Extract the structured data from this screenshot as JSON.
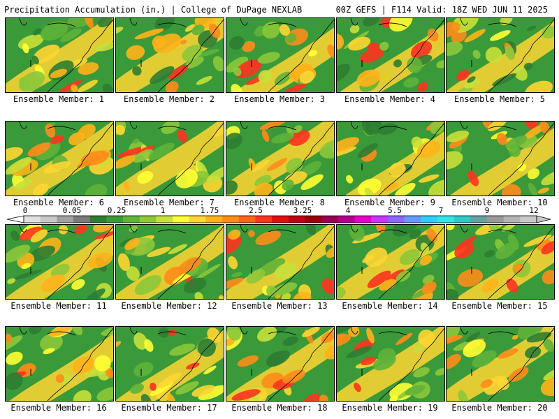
{
  "header": {
    "left_title": "Precipitation Accumulation (in.) | College of DuPage NEXLAB",
    "right_title": "00Z GEFS | F114 Valid: 18Z WED JUN 11 2025"
  },
  "colorbar": {
    "labels": [
      "0",
      "0.05",
      "0.25",
      "1",
      "1.75",
      "2.5",
      "3.25",
      "4",
      "5.5",
      "7",
      "9",
      "12"
    ],
    "colors": [
      "#e0e0e0",
      "#c8c8c8",
      "#a0a0a0",
      "#7a7a7a",
      "#2e7d32",
      "#3a9a3a",
      "#5fb33a",
      "#8cc83a",
      "#c8e03a",
      "#ffff33",
      "#ffd633",
      "#ffb31a",
      "#ff8c1a",
      "#ff661a",
      "#ff3320",
      "#e01010",
      "#c00014",
      "#99000f",
      "#990050",
      "#b4008c",
      "#e600c8",
      "#cc33ff",
      "#8c66ff",
      "#6699ff",
      "#33ccff",
      "#33e6e6",
      "#33c8c8",
      "#66a0a0",
      "#999999",
      "#b4b4b4",
      "#c8c8c8"
    ]
  },
  "panels": [
    {
      "label": "Ensemble Member: 1"
    },
    {
      "label": "Ensemble Member: 2"
    },
    {
      "label": "Ensemble Member: 3"
    },
    {
      "label": "Ensemble Member: 4"
    },
    {
      "label": "Ensemble Member: 5"
    },
    {
      "label": "Ensemble Member: 6"
    },
    {
      "label": "Ensemble Member: 7"
    },
    {
      "label": "Ensemble Member: 8"
    },
    {
      "label": "Ensemble Member: 9"
    },
    {
      "label": "Ensemble Member: 10"
    },
    {
      "label": "Ensemble Member: 11"
    },
    {
      "label": "Ensemble Member: 12"
    },
    {
      "label": "Ensemble Member: 13"
    },
    {
      "label": "Ensemble Member: 14"
    },
    {
      "label": "Ensemble Member: 15"
    },
    {
      "label": "Ensemble Member: 16"
    },
    {
      "label": "Ensemble Member: 17"
    },
    {
      "label": "Ensemble Member: 18"
    },
    {
      "label": "Ensemble Member: 19"
    },
    {
      "label": "Ensemble Member: 20"
    }
  ]
}
